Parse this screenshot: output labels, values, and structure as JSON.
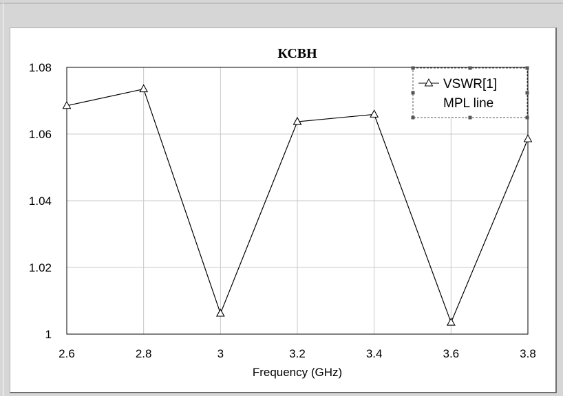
{
  "chart_data": {
    "type": "line",
    "title": "КСВН",
    "xlabel": "Frequency (GHz)",
    "ylabel": "",
    "xlim": [
      2.6,
      3.8
    ],
    "ylim": [
      1,
      1.08
    ],
    "x_ticks": [
      "2.6",
      "2.8",
      "3",
      "3.2",
      "3.4",
      "3.6",
      "3.8"
    ],
    "y_ticks": [
      "1",
      "1.02",
      "1.04",
      "1.06",
      "1.08"
    ],
    "grid": true,
    "legend_position": "top-right",
    "legend_entries": [
      "VSWR[1]",
      "MPL line"
    ],
    "series": [
      {
        "name": "VSWR[1]",
        "color": "#000000",
        "marker": "triangle",
        "x": [
          2.6,
          2.8,
          3.0,
          3.2,
          3.4,
          3.6,
          3.8
        ],
        "y": [
          1.0685,
          1.0735,
          1.0062,
          1.0637,
          1.0659,
          1.0035,
          1.0585
        ]
      }
    ]
  }
}
